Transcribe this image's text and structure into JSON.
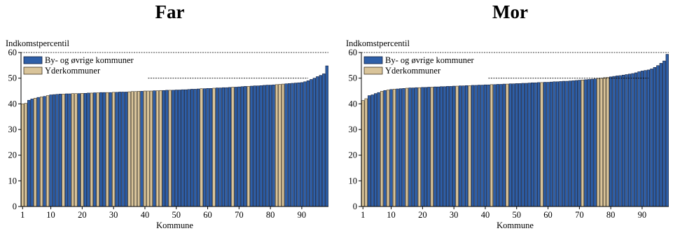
{
  "colors": {
    "by_fill": "#2E5FA8",
    "by_stroke": "#0F1C3A",
    "yder_fill": "#D9C49A",
    "yder_stroke": "#3A3120",
    "axis": "#000000"
  },
  "chart_data": [
    {
      "type": "bar",
      "title": "Far",
      "ylabel": "Indkomstpercentil",
      "xlabel": "Kommune",
      "ylim": [
        0,
        60
      ],
      "yticks": [
        0,
        10,
        20,
        30,
        40,
        50,
        60
      ],
      "xticks": [
        1,
        10,
        20,
        30,
        40,
        50,
        60,
        70,
        80,
        90
      ],
      "grid": false,
      "legend": [
        "By- og øvrige kommuner",
        "Yderkommuner"
      ],
      "legend_placement": "top-left",
      "reference_lines": [
        {
          "value": 60,
          "from": 1,
          "to": 98
        },
        {
          "value": 50,
          "from": 41,
          "to": 92
        }
      ],
      "values": [
        40.0,
        40.2,
        41.4,
        41.9,
        42.2,
        42.5,
        42.7,
        42.9,
        43.2,
        43.5,
        43.6,
        43.7,
        43.8,
        43.8,
        43.9,
        43.9,
        44.0,
        44.0,
        44.0,
        44.1,
        44.1,
        44.2,
        44.2,
        44.3,
        44.3,
        44.4,
        44.4,
        44.4,
        44.4,
        44.5,
        44.5,
        44.6,
        44.6,
        44.6,
        44.7,
        44.8,
        44.8,
        44.9,
        44.9,
        45.0,
        45.0,
        45.0,
        45.1,
        45.1,
        45.2,
        45.2,
        45.3,
        45.3,
        45.3,
        45.4,
        45.4,
        45.5,
        45.5,
        45.6,
        45.7,
        45.7,
        45.8,
        45.9,
        45.9,
        46.0,
        46.0,
        46.1,
        46.2,
        46.2,
        46.3,
        46.3,
        46.4,
        46.5,
        46.5,
        46.6,
        46.7,
        46.8,
        46.8,
        46.9,
        47.0,
        47.0,
        47.1,
        47.2,
        47.3,
        47.3,
        47.4,
        47.5,
        47.6,
        47.7,
        47.8,
        47.9,
        48.0,
        48.1,
        48.2,
        48.3,
        48.6,
        49.0,
        49.5,
        50.0,
        50.6,
        51.1,
        51.7,
        54.8
      ],
      "yderkommuner_positions": [
        1,
        2,
        5,
        7,
        9,
        14,
        17,
        18,
        20,
        23,
        25,
        28,
        30,
        35,
        36,
        37,
        38,
        40,
        41,
        42,
        44,
        45,
        48,
        58,
        62,
        68,
        73,
        82,
        83,
        84
      ]
    },
    {
      "type": "bar",
      "title": "Mor",
      "ylabel": "Indkomstpercentil",
      "xlabel": "Kommune",
      "ylim": [
        0,
        60
      ],
      "yticks": [
        0,
        10,
        20,
        30,
        40,
        50,
        60
      ],
      "xticks": [
        1,
        10,
        20,
        30,
        40,
        50,
        60,
        70,
        80,
        90
      ],
      "grid": false,
      "legend": [
        "By- og øvrige kommuner",
        "Yderkommuner"
      ],
      "legend_placement": "top-left",
      "reference_lines": [
        {
          "value": 60,
          "from": 1,
          "to": 98
        },
        {
          "value": 50,
          "from": 41,
          "to": 92
        }
      ],
      "values": [
        41.3,
        42.0,
        43.2,
        43.5,
        44.0,
        44.4,
        44.9,
        45.2,
        45.4,
        45.6,
        45.7,
        45.8,
        45.9,
        46.0,
        46.1,
        46.2,
        46.2,
        46.3,
        46.3,
        46.4,
        46.4,
        46.5,
        46.5,
        46.6,
        46.6,
        46.7,
        46.7,
        46.8,
        46.8,
        46.9,
        46.9,
        47.0,
        47.0,
        47.1,
        47.1,
        47.2,
        47.2,
        47.3,
        47.3,
        47.4,
        47.4,
        47.5,
        47.5,
        47.6,
        47.6,
        47.7,
        47.7,
        47.8,
        47.8,
        47.9,
        47.9,
        48.0,
        48.0,
        48.1,
        48.2,
        48.2,
        48.3,
        48.3,
        48.4,
        48.4,
        48.5,
        48.6,
        48.6,
        48.7,
        48.8,
        48.8,
        48.9,
        49.0,
        49.1,
        49.2,
        49.3,
        49.4,
        49.5,
        49.6,
        49.7,
        49.9,
        50.0,
        50.2,
        50.3,
        50.5,
        50.7,
        50.9,
        51.0,
        51.2,
        51.4,
        51.6,
        51.8,
        52.1,
        52.5,
        52.8,
        53.0,
        53.2,
        53.6,
        54.2,
        54.9,
        55.8,
        56.7,
        59.3
      ],
      "yderkommuner_positions": [
        1,
        2,
        7,
        9,
        11,
        15,
        19,
        23,
        31,
        35,
        42,
        47,
        58,
        71,
        76,
        77,
        78,
        79
      ]
    }
  ]
}
